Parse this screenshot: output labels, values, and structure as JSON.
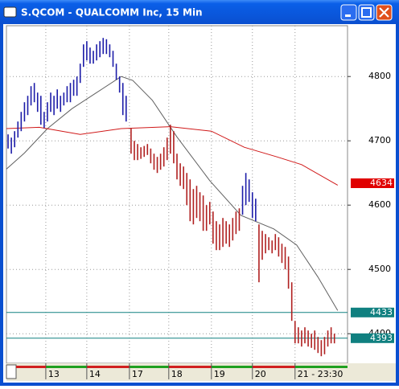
{
  "window": {
    "title": "S.QCOM - QUALCOMM Inc, 15 Min"
  },
  "chart_data": {
    "type": "hlc",
    "xlim": [
      0,
      208
    ],
    "ylim": [
      4354,
      4879
    ],
    "yticks": [
      4400,
      4500,
      4600,
      4700,
      4800
    ],
    "xticks": [
      {
        "value": 24,
        "label": "13"
      },
      {
        "value": 49,
        "label": "14"
      },
      {
        "value": 75,
        "label": "17"
      },
      {
        "value": 99,
        "label": "18"
      },
      {
        "value": 125,
        "label": "19"
      },
      {
        "value": 150,
        "label": "20"
      },
      {
        "value": 176,
        "label": "21 - 23:30"
      }
    ],
    "grid": true,
    "series": [
      {
        "color": "#1c1ca8",
        "x": [
          1,
          3,
          5,
          7,
          9,
          11,
          13,
          15,
          17,
          19,
          21,
          23,
          25,
          27,
          29,
          31,
          33,
          35,
          37,
          39,
          41,
          43,
          45,
          47,
          49,
          51,
          53,
          55,
          57,
          59,
          61,
          63,
          65,
          67,
          69,
          71,
          73
        ],
        "high": [
          4710,
          4705,
          4715,
          4730,
          4745,
          4760,
          4770,
          4785,
          4790,
          4775,
          4770,
          4745,
          4760,
          4775,
          4770,
          4780,
          4770,
          4775,
          4785,
          4790,
          4795,
          4800,
          4820,
          4850,
          4855,
          4845,
          4840,
          4850,
          4855,
          4860,
          4858,
          4850,
          4840,
          4820,
          4800,
          4790,
          4770
        ],
        "low": [
          4688,
          4680,
          4690,
          4705,
          4715,
          4730,
          4740,
          4755,
          4760,
          4745,
          4725,
          4720,
          4730,
          4745,
          4740,
          4750,
          4745,
          4755,
          4760,
          4760,
          4770,
          4770,
          4790,
          4815,
          4825,
          4820,
          4820,
          4825,
          4830,
          4835,
          4835,
          4830,
          4815,
          4795,
          4775,
          4740,
          4730
        ]
      },
      {
        "color": "#b02020",
        "x": [
          76,
          78,
          80,
          82,
          84,
          86,
          88,
          90,
          92,
          94,
          96,
          98,
          100,
          102,
          104,
          106,
          108,
          110,
          112,
          114,
          116,
          118,
          120,
          122,
          124,
          126,
          128,
          130,
          132,
          134,
          136,
          138,
          140,
          142
        ],
        "high": [
          4720,
          4700,
          4695,
          4690,
          4692,
          4695,
          4688,
          4680,
          4675,
          4680,
          4690,
          4705,
          4725,
          4715,
          4680,
          4665,
          4660,
          4650,
          4640,
          4625,
          4630,
          4620,
          4615,
          4600,
          4605,
          4590,
          4575,
          4570,
          4580,
          4575,
          4570,
          4580,
          4590,
          4595
        ],
        "low": [
          4680,
          4670,
          4670,
          4672,
          4675,
          4678,
          4665,
          4655,
          4650,
          4655,
          4660,
          4670,
          4680,
          4665,
          4640,
          4630,
          4625,
          4600,
          4575,
          4570,
          4580,
          4575,
          4560,
          4560,
          4570,
          4540,
          4530,
          4530,
          4535,
          4540,
          4535,
          4545,
          4555,
          4560
        ]
      },
      {
        "color": "#1c1ca8",
        "x": [
          144,
          146,
          148,
          150,
          152
        ],
        "high": [
          4630,
          4650,
          4640,
          4620,
          4610
        ],
        "low": [
          4585,
          4600,
          4605,
          4580,
          4575
        ]
      },
      {
        "color": "#b02020",
        "x": [
          154,
          156,
          158,
          160,
          162,
          164,
          166,
          168,
          170,
          172,
          174,
          176,
          178,
          180,
          182,
          184,
          186,
          188,
          190,
          192,
          194,
          196,
          198,
          200
        ],
        "high": [
          4570,
          4560,
          4555,
          4550,
          4545,
          4555,
          4550,
          4540,
          4535,
          4520,
          4480,
          4420,
          4410,
          4405,
          4410,
          4405,
          4400,
          4405,
          4395,
          4390,
          4395,
          4405,
          4410,
          4400
        ],
        "low": [
          4480,
          4515,
          4525,
          4530,
          4525,
          4530,
          4520,
          4510,
          4500,
          4470,
          4420,
          4385,
          4385,
          4380,
          4385,
          4380,
          4378,
          4375,
          4370,
          4365,
          4368,
          4380,
          4385,
          4385
        ]
      }
    ],
    "lines": [
      {
        "color": "#606060",
        "x": [
          0,
          11,
          25,
          40,
          55,
          70,
          77,
          89,
          104,
          124,
          143,
          163,
          177,
          190,
          202
        ],
        "values": [
          4656,
          4681,
          4719,
          4750,
          4775,
          4800,
          4794,
          4763,
          4706,
          4638,
          4584,
          4563,
          4538,
          4488,
          4436
        ]
      },
      {
        "color": "#d01818",
        "x": [
          0,
          20,
          45,
          70,
          100,
          125,
          145,
          165,
          180,
          202
        ],
        "values": [
          4719,
          4721,
          4710,
          4719,
          4722,
          4715,
          4690,
          4675,
          4663,
          4631
        ]
      }
    ],
    "levels": [
      {
        "value": 4634,
        "color": "#e00000",
        "line": false
      },
      {
        "value": 4433,
        "color": "#108080",
        "line": true
      },
      {
        "value": 4393,
        "color": "#108080",
        "line": true
      }
    ]
  }
}
